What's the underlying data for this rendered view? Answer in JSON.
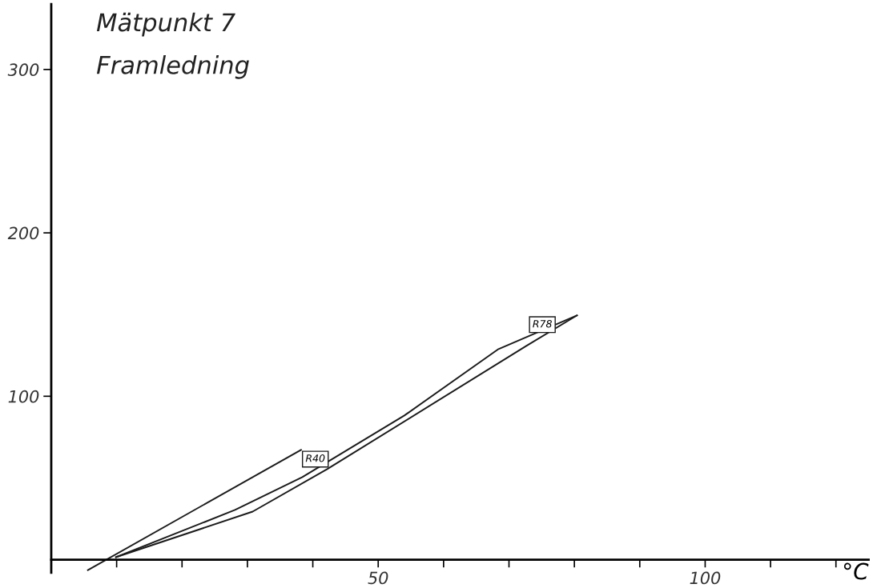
{
  "chart_data": {
    "type": "line",
    "title": "Mätpunkt 7",
    "subtitle": "Framledning",
    "xlabel": "°C",
    "xlim": [
      0,
      125
    ],
    "ylim": [
      -8,
      340
    ],
    "xticks": [
      {
        "value": 10,
        "label": null
      },
      {
        "value": 20,
        "label": null
      },
      {
        "value": 30,
        "label": null
      },
      {
        "value": 40,
        "label": null
      },
      50,
      {
        "value": 60,
        "label": null
      },
      {
        "value": 70,
        "label": null
      },
      {
        "value": 80,
        "label": null
      },
      {
        "value": 90,
        "label": null
      },
      100,
      {
        "value": 110,
        "label": null
      },
      {
        "value": 120,
        "label": null
      }
    ],
    "yticks": [
      100,
      200,
      300
    ],
    "grid": false,
    "legend": false,
    "marker": "none",
    "line_style": "solid",
    "series": [
      {
        "color": "#1a1a1a",
        "x": [
          9.9,
          28.1,
          38.4,
          54.0,
          68.4,
          80.4
        ],
        "values": [
          1.5,
          30.4,
          50.5,
          88.2,
          128.9,
          149.5
        ]
      },
      {
        "color": "#1a1a1a",
        "x": [
          80.4,
          72.7,
          42.2,
          30.8,
          9.9
        ],
        "values": [
          149.5,
          130.9,
          55.4,
          29.4,
          1.5
        ]
      },
      {
        "color": "#1a1a1a",
        "x": [
          38.2,
          5.6
        ],
        "values": [
          67.2,
          -6.4
        ]
      }
    ],
    "annotations": [
      {
        "text": "R40",
        "x": 38.2,
        "y": 67.2
      },
      {
        "text": "R78",
        "x": 80.4,
        "y": 149.5
      }
    ]
  }
}
